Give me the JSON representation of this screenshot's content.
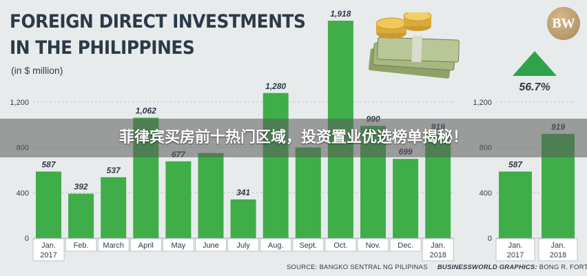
{
  "title_line1": "FOREIGN DIRECT INVESTMENTS",
  "title_line2": "IN THE PHILIPPINES",
  "unit_label": "(in $ million)",
  "banner_text": "菲律宾买房前十热门区域，投资置业优选榜单揭秘！",
  "logo_text": "BW",
  "change_value": "56.7%",
  "source_text": "SOURCE: BANGKO SENTRAL NG PILIPINAS",
  "credit_prefix": "BUSINESSWORLD GRAPHICS:",
  "credit_name": "BONG R. FORTIN",
  "colors": {
    "bar": "#3fae49",
    "background": "#e8ebec",
    "grid": "#bcc3c7",
    "text": "#2c3a48",
    "arrow": "#2fa34a"
  },
  "chart_data": [
    {
      "type": "bar",
      "categories": [
        "Jan.\n2017",
        "Feb.",
        "March",
        "April",
        "May",
        "June",
        "July",
        "Aug.",
        "Sept.",
        "Oct.",
        "Nov.",
        "Dec.",
        "Jan.\n2018"
      ],
      "values": [
        587,
        392,
        537,
        1062,
        677,
        750,
        341,
        1280,
        800,
        1918,
        990,
        699,
        919
      ],
      "data_labels": [
        "587",
        "392",
        "537",
        "1,062",
        "677",
        "",
        "341",
        "1,280",
        "",
        "1,918",
        "990",
        "699",
        "919"
      ],
      "yticks": [
        0,
        400,
        800,
        1200
      ],
      "ytick_labels": [
        "0",
        "400",
        "800",
        "1,200"
      ],
      "ylim": [
        0,
        1918
      ],
      "grid": true,
      "legend": "none"
    },
    {
      "type": "bar",
      "categories": [
        "Jan.\n2017",
        "Jan.\n2018"
      ],
      "values": [
        587,
        919
      ],
      "data_labels": [
        "587",
        "919"
      ],
      "yticks": [
        0,
        400,
        800,
        1200
      ],
      "ytick_labels": [
        "0",
        "400",
        "800",
        "1,200"
      ],
      "ylim": [
        0,
        1918
      ],
      "grid": true,
      "legend": "none"
    }
  ]
}
